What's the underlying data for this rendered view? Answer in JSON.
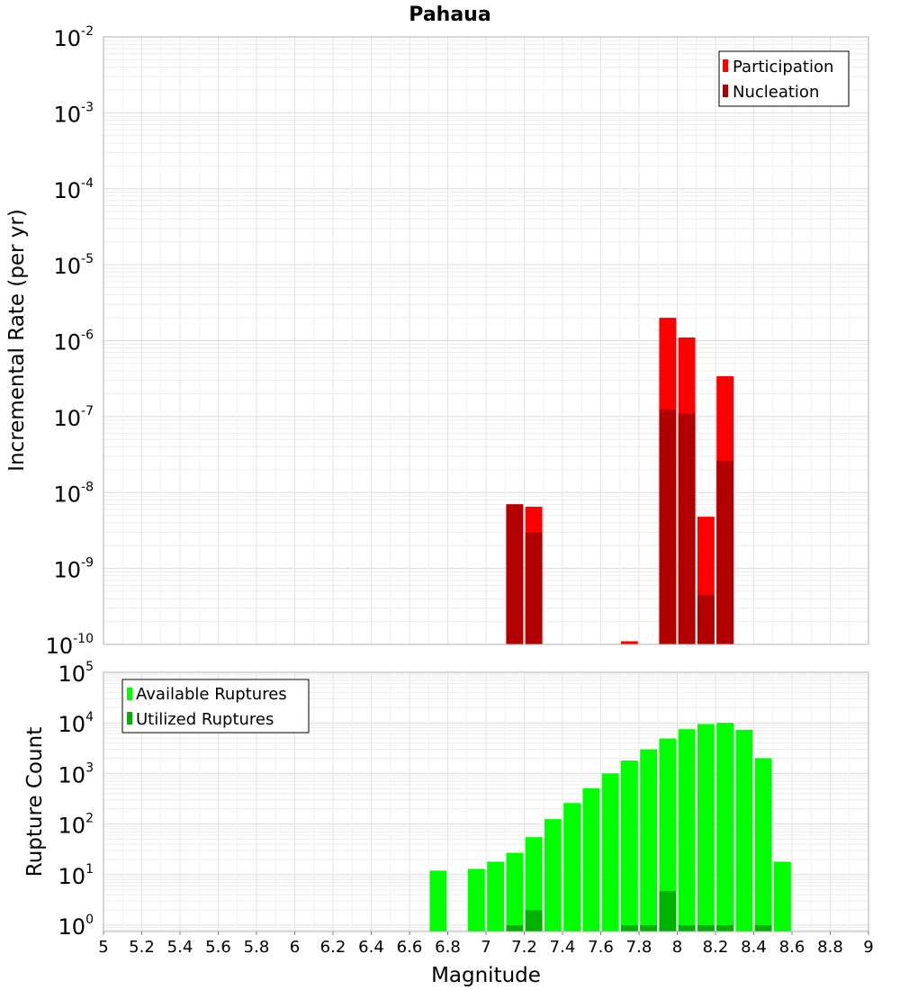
{
  "chart_data": [
    {
      "type": "bar",
      "title": "Pahaua",
      "xlabel": "",
      "ylabel": "Incremental Rate (per yr)",
      "yscale": "log",
      "xlim": [
        5,
        9
      ],
      "ylim": [
        1e-10,
        0.01
      ],
      "bin_width": 0.1,
      "legend_position": "top-right",
      "grid": true,
      "y_ticks": [
        {
          "base": "10",
          "exp": "-10"
        },
        {
          "base": "10",
          "exp": "-9"
        },
        {
          "base": "10",
          "exp": "-8"
        },
        {
          "base": "10",
          "exp": "-7"
        },
        {
          "base": "10",
          "exp": "-6"
        },
        {
          "base": "10",
          "exp": "-5"
        },
        {
          "base": "10",
          "exp": "-4"
        },
        {
          "base": "10",
          "exp": "-3"
        },
        {
          "base": "10",
          "exp": "-2"
        }
      ],
      "series": [
        {
          "name": "Participation",
          "color": "#ff0000",
          "x": [
            7.15,
            7.25,
            7.75,
            7.95,
            8.05,
            8.15,
            8.25
          ],
          "values": [
            7e-09,
            6.5e-09,
            1.1e-10,
            2e-06,
            1.1e-06,
            4.8e-09,
            3.4e-07
          ]
        },
        {
          "name": "Nucleation",
          "color": "#b20000",
          "x": [
            7.15,
            7.25,
            7.75,
            7.95,
            8.05,
            8.15,
            8.25
          ],
          "values": [
            7e-09,
            3e-09,
            1e-10,
            1.25e-07,
            1.1e-07,
            4.5e-10,
            2.6e-08
          ]
        }
      ]
    },
    {
      "type": "bar",
      "title": "",
      "xlabel": "Magnitude",
      "ylabel": "Rupture Count",
      "yscale": "log",
      "xlim": [
        5,
        9
      ],
      "ylim": [
        0.75,
        100000.0
      ],
      "bin_width": 0.1,
      "legend_position": "top-left",
      "grid": true,
      "x_ticks": [
        "5",
        "5.2",
        "5.4",
        "5.6",
        "5.8",
        "6",
        "6.2",
        "6.4",
        "6.6",
        "6.8",
        "7",
        "7.2",
        "7.4",
        "7.6",
        "7.8",
        "8",
        "8.2",
        "8.4",
        "8.6",
        "8.8",
        "9"
      ],
      "y_ticks": [
        {
          "base": "10",
          "exp": "0"
        },
        {
          "base": "10",
          "exp": "1"
        },
        {
          "base": "10",
          "exp": "2"
        },
        {
          "base": "10",
          "exp": "3"
        },
        {
          "base": "10",
          "exp": "4"
        },
        {
          "base": "10",
          "exp": "5"
        }
      ],
      "series": [
        {
          "name": "Available Ruptures",
          "color": "#00ff00",
          "x": [
            6.75,
            6.95,
            7.05,
            7.15,
            7.25,
            7.35,
            7.45,
            7.55,
            7.65,
            7.75,
            7.85,
            7.95,
            8.05,
            8.15,
            8.25,
            8.35,
            8.45,
            8.55
          ],
          "values": [
            12,
            13,
            18,
            27,
            55,
            125,
            260,
            510,
            1000,
            1800,
            3000,
            4900,
            7500,
            9500,
            10000,
            7300,
            2000,
            18
          ]
        },
        {
          "name": "Utilized Ruptures",
          "color": "#00b200",
          "x": [
            7.15,
            7.25,
            7.75,
            7.85,
            7.95,
            8.05,
            8.15,
            8.25,
            8.45
          ],
          "values": [
            1,
            2,
            1,
            1,
            4.7,
            1,
            1,
            1,
            1
          ]
        }
      ]
    }
  ]
}
